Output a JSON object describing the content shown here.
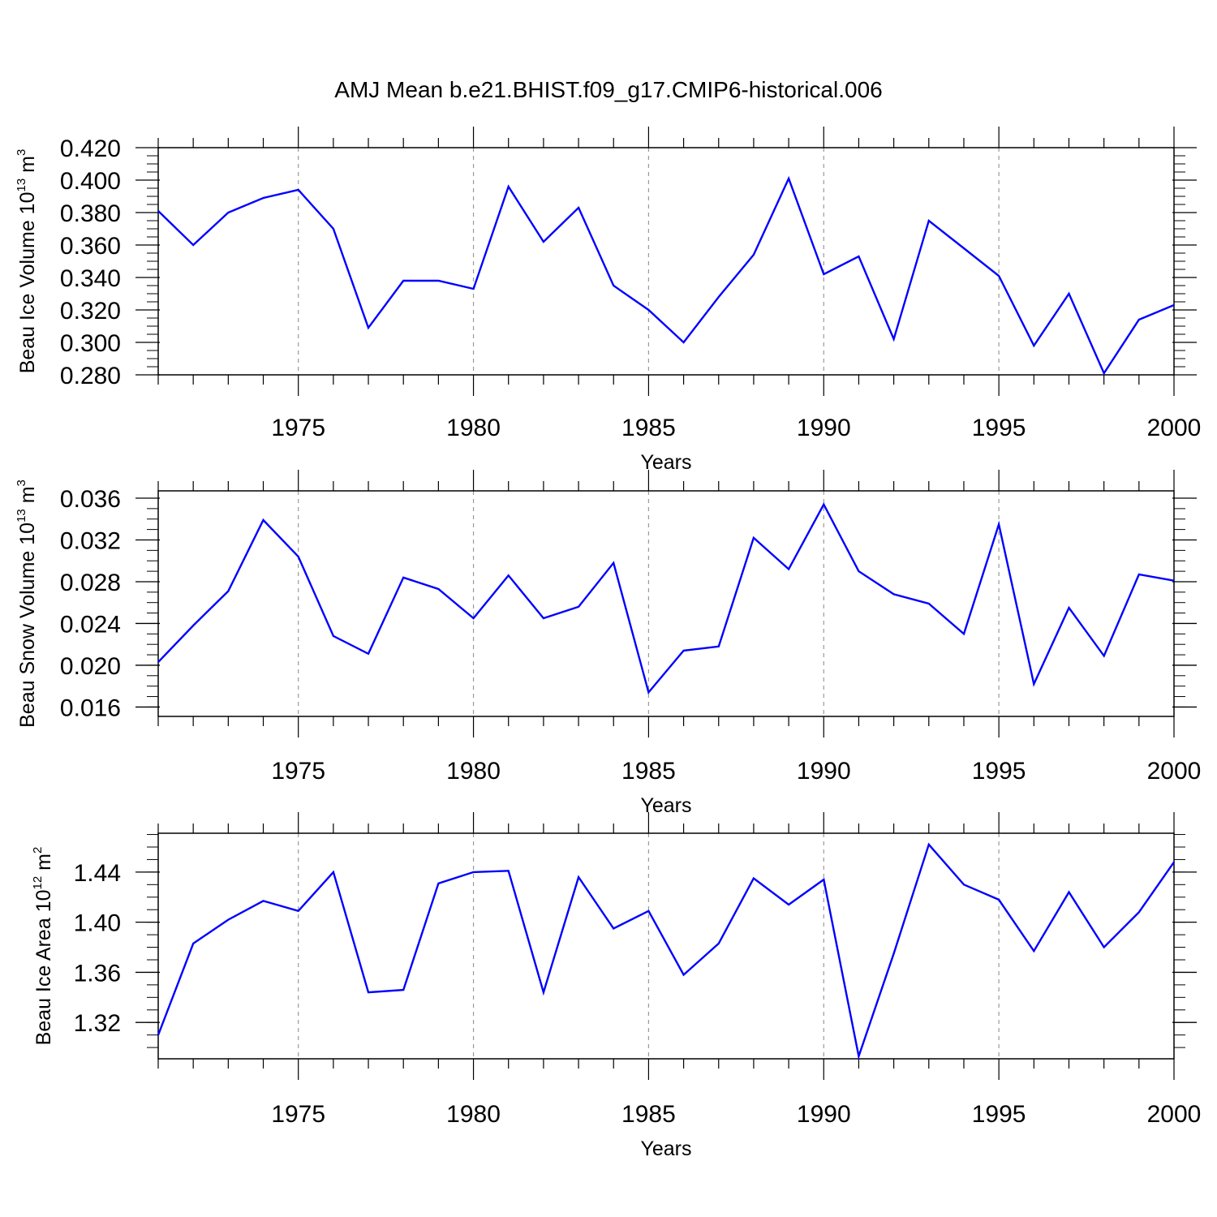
{
  "figure": {
    "title": "AMJ Mean b.e21.BHIST.f09_g17.CMIP6-historical.006"
  },
  "style": {
    "line_color": "#0000ff",
    "axis_color": "#000000",
    "grid_color": "#999999"
  },
  "chart_data": [
    {
      "type": "line",
      "ylabel_main": "Beau Ice Volume 10",
      "ylabel_exp": "13",
      "ylabel_unit": "m",
      "ylabel_unit_exp": "3",
      "xlabel": "Years",
      "xlim": [
        1971,
        2000
      ],
      "ylim": [
        0.28,
        0.42
      ],
      "yticks": [
        "0.420",
        "0.400",
        "0.380",
        "0.360",
        "0.340",
        "0.320",
        "0.300",
        "0.280"
      ],
      "xticks": [
        "1975",
        "1980",
        "1985",
        "1990",
        "1995",
        "2000"
      ],
      "grid": "vertical dashed at labeled years",
      "series": [
        {
          "x": [
            1971,
            1972,
            1973,
            1974,
            1975,
            1976,
            1977,
            1978,
            1979,
            1980,
            1981,
            1982,
            1983,
            1984,
            1985,
            1986,
            1987,
            1988,
            1989,
            1990,
            1991,
            1992,
            1993,
            1994,
            1995,
            1996,
            1997,
            1998,
            1999,
            2000
          ],
          "values": [
            0.381,
            0.36,
            0.38,
            0.389,
            0.394,
            0.37,
            0.309,
            0.338,
            0.338,
            0.333,
            0.396,
            0.362,
            0.383,
            0.335,
            0.32,
            0.3,
            0.328,
            0.354,
            0.401,
            0.342,
            0.353,
            0.302,
            0.375,
            0.358,
            0.341,
            0.298,
            0.33,
            0.281,
            0.314,
            0.323
          ]
        }
      ]
    },
    {
      "type": "line",
      "ylabel_main": "Beau Snow Volume 10",
      "ylabel_exp": "13",
      "ylabel_unit": "m",
      "ylabel_unit_exp": "3",
      "xlabel": "Years",
      "xlim": [
        1971,
        2000
      ],
      "ylim": [
        0.0151,
        0.0367
      ],
      "yticks": [
        "0.036",
        "0.032",
        "0.028",
        "0.024",
        "0.020",
        "0.016"
      ],
      "xticks": [
        "1975",
        "1980",
        "1985",
        "1990",
        "1995",
        "2000"
      ],
      "grid": "vertical dashed at labeled years",
      "series": [
        {
          "x": [
            1971,
            1972,
            1973,
            1974,
            1975,
            1976,
            1977,
            1978,
            1979,
            1980,
            1981,
            1982,
            1983,
            1984,
            1985,
            1986,
            1987,
            1988,
            1989,
            1990,
            1991,
            1992,
            1993,
            1994,
            1995,
            1996,
            1997,
            1998,
            1999,
            2000
          ],
          "values": [
            0.0203,
            0.0238,
            0.0271,
            0.0339,
            0.0304,
            0.0228,
            0.0211,
            0.0284,
            0.0273,
            0.0245,
            0.0286,
            0.0245,
            0.0256,
            0.0298,
            0.0174,
            0.0214,
            0.0218,
            0.0322,
            0.0292,
            0.0354,
            0.029,
            0.0268,
            0.0259,
            0.023,
            0.0335,
            0.0182,
            0.0255,
            0.0209,
            0.0287,
            0.0281
          ]
        }
      ]
    },
    {
      "type": "line",
      "ylabel_main": "Beau Ice Area 10",
      "ylabel_exp": "12",
      "ylabel_unit": "m",
      "ylabel_unit_exp": "2",
      "xlabel": "Years",
      "xlim": [
        1971,
        2000
      ],
      "ylim": [
        1.291,
        1.471
      ],
      "yticks": [
        "1.44",
        "1.40",
        "1.36",
        "1.32"
      ],
      "xticks": [
        "1975",
        "1980",
        "1985",
        "1990",
        "1995",
        "2000"
      ],
      "grid": "vertical dashed at labeled years",
      "series": [
        {
          "x": [
            1971,
            1972,
            1973,
            1974,
            1975,
            1976,
            1977,
            1978,
            1979,
            1980,
            1981,
            1982,
            1983,
            1984,
            1985,
            1986,
            1987,
            1988,
            1989,
            1990,
            1991,
            1992,
            1993,
            1994,
            1995,
            1996,
            1997,
            1998,
            1999,
            2000
          ],
          "values": [
            1.31,
            1.383,
            1.402,
            1.417,
            1.409,
            1.44,
            1.344,
            1.346,
            1.431,
            1.44,
            1.441,
            1.344,
            1.436,
            1.395,
            1.409,
            1.358,
            1.383,
            1.435,
            1.414,
            1.434,
            1.293,
            1.375,
            1.462,
            1.43,
            1.418,
            1.377,
            1.424,
            1.38,
            1.408,
            1.448
          ]
        }
      ]
    }
  ]
}
